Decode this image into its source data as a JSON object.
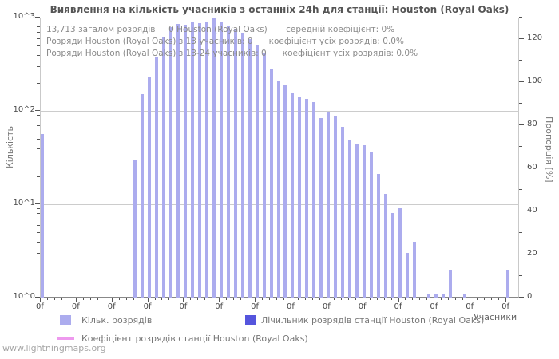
{
  "page": {
    "title_text": "Виявлення на кількість учасників з останніх 24h для станції: Houston (Royal Oaks)"
  },
  "info_lines": [
    "13,713 загалом розрядів     0 Houston (Royal Oaks)       середній коефіцієнт: 0%",
    "Розряди Houston (Royal Oaks) з 13 учасників: 0      коефіцієнт усіх розрядів: 0.0%",
    "Розряди Houston (Royal Oaks) з 13-24 учасників: 0      коефіцієнт усіх розрядів: 0.0%"
  ],
  "axes": {
    "left_title": "Кількість",
    "right_title": "Пропорція [%]",
    "x_title": "Учасники",
    "left_ticks": [
      "10^3",
      "10^2",
      "10^1",
      "10^0"
    ],
    "right_ticks": [
      "120",
      "100",
      "80",
      "60",
      "40",
      "20",
      "0"
    ],
    "x_tick_label": "0f"
  },
  "legend": [
    {
      "label": "Кільк. розрядів",
      "swatch": "square",
      "color": "#acacee"
    },
    {
      "label": "Коефіцієнт розрядів станції Houston (Royal Oaks)",
      "swatch": "line",
      "color": "#ee99ee"
    },
    {
      "label": "Лічильник розрядів станції Houston (Royal Oaks)",
      "swatch": "square",
      "color": "#5555dd"
    }
  ],
  "watermark": "www.lightningmaps.org",
  "colors": {
    "bar": "#acacee",
    "grid": "#cccccc",
    "border": "#c9c9c9",
    "tick": "#555555",
    "coefficient_line": "#ee99ee",
    "counter_square": "#5555dd"
  },
  "chart_data": {
    "type": "bar",
    "title": "Виявлення на кількість учасників з останніх 24h для станції: Houston (Royal Oaks)",
    "xlabel": "Учасники",
    "ylabel": "Кількість",
    "ylabel_right": "Пропорція [%]",
    "y_scale": "log10",
    "ylim": [
      1,
      1000
    ],
    "right_ylim": [
      0,
      130
    ],
    "grid": "horizontal-decades",
    "legend_position": "bottom",
    "x_slot_count": 67,
    "x_major_every": 5,
    "x_major_count": 14,
    "bars_slot_value": [
      [
        0,
        57
      ],
      [
        13,
        30
      ],
      [
        14,
        152
      ],
      [
        15,
        235
      ],
      [
        16,
        383
      ],
      [
        17,
        625
      ],
      [
        18,
        790
      ],
      [
        19,
        855
      ],
      [
        20,
        838
      ],
      [
        21,
        885
      ],
      [
        22,
        863
      ],
      [
        23,
        885
      ],
      [
        24,
        980
      ],
      [
        25,
        905
      ],
      [
        26,
        810
      ],
      [
        27,
        760
      ],
      [
        28,
        690
      ],
      [
        29,
        590
      ],
      [
        30,
        515
      ],
      [
        31,
        424
      ],
      [
        32,
        285
      ],
      [
        33,
        212
      ],
      [
        34,
        193
      ],
      [
        35,
        158
      ],
      [
        36,
        143
      ],
      [
        37,
        135
      ],
      [
        38,
        125
      ],
      [
        39,
        84
      ],
      [
        40,
        97
      ],
      [
        41,
        89
      ],
      [
        42,
        68
      ],
      [
        43,
        49
      ],
      [
        44,
        44
      ],
      [
        45,
        43
      ],
      [
        46,
        37
      ],
      [
        47,
        21
      ],
      [
        48,
        13
      ],
      [
        49,
        8
      ],
      [
        50,
        9
      ],
      [
        51,
        3
      ],
      [
        52,
        4
      ],
      [
        54,
        1
      ],
      [
        55,
        1
      ],
      [
        56,
        1
      ],
      [
        57,
        2
      ],
      [
        59,
        1
      ],
      [
        65,
        2
      ]
    ]
  }
}
